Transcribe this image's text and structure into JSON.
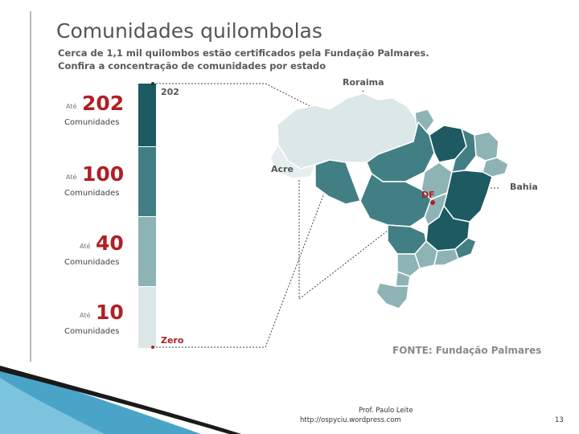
{
  "title": "Comunidades quilombolas",
  "subtitle": [
    "Cerca de 1,1 mil quilombos estão certificados pela Fundação Palmares.",
    "Confira a concentração de comunidades por estado"
  ],
  "legend": [
    {
      "prefix": "Até",
      "value": "202",
      "label": "Comunidades",
      "color": "#1d5a61"
    },
    {
      "prefix": "Até",
      "value": "100",
      "label": "Comunidades",
      "color": "#427f84"
    },
    {
      "prefix": "Até",
      "value": "40",
      "label": "Comunidades",
      "color": "#8eb3b4"
    },
    {
      "prefix": "Até",
      "value": "10",
      "label": "Comunidades",
      "color": "#dce7e7"
    }
  ],
  "scale": {
    "top": "202",
    "bottom": "Zero"
  },
  "map_labels": {
    "roraima": "Roraima",
    "acre": "Acre",
    "df": "DF",
    "bahia": "Bahia"
  },
  "source": "FONTE: Fundação Palmares",
  "footer": {
    "author": "Prof. Paulo Leite",
    "url": "http://ospyciu.wordpress.com",
    "page": "13"
  }
}
